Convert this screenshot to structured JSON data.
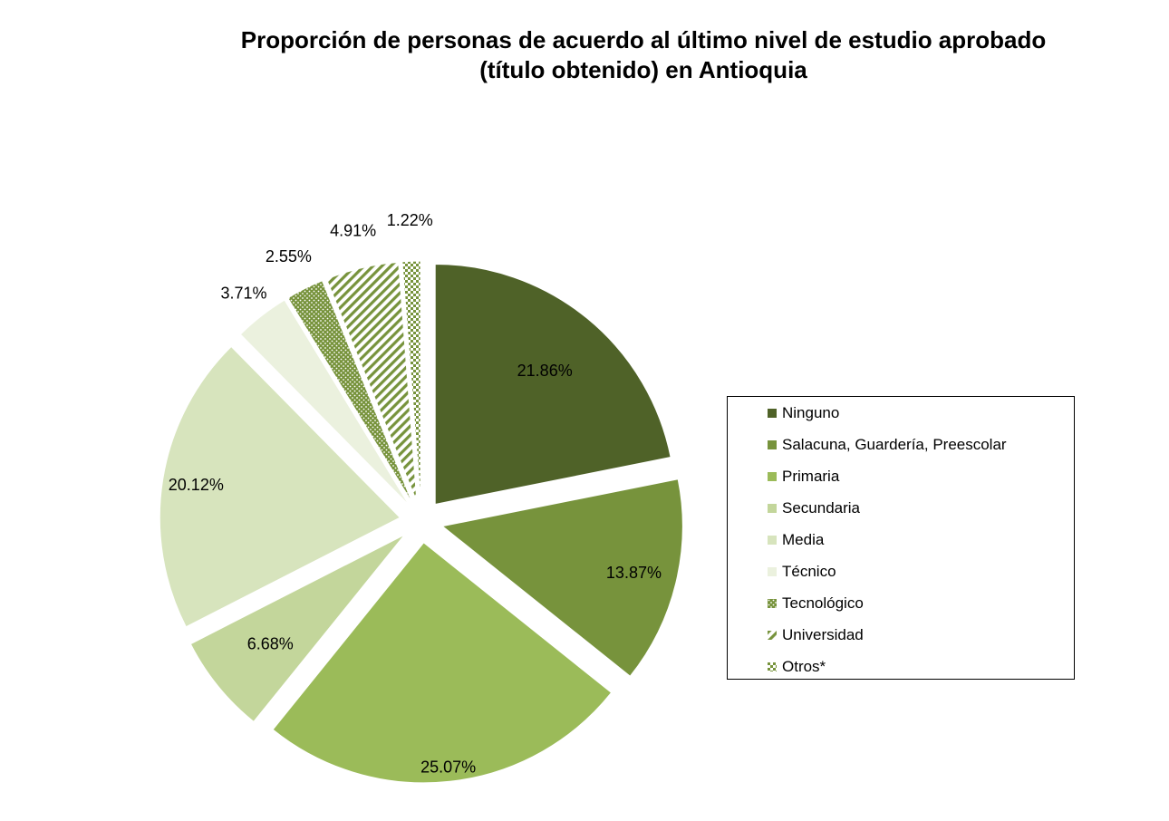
{
  "chart_data": {
    "type": "pie",
    "title_line1": "Proporción de personas de acuerdo al último nivel de estudio aprobado",
    "title_line2": "(título obtenido) en Antioquia",
    "slices": [
      {
        "label": "Ninguno",
        "value": 21.86,
        "display": "21.86%",
        "color": "#4f6228",
        "pattern": "solid"
      },
      {
        "label": "Salacuna, Guardería, Preescolar",
        "value": 13.87,
        "display": "13.87%",
        "color": "#77933c",
        "pattern": "solid"
      },
      {
        "label": "Primaria",
        "value": 25.07,
        "display": "25.07%",
        "color": "#9bbb59",
        "pattern": "solid"
      },
      {
        "label": "Secundaria",
        "value": 6.68,
        "display": "6.68%",
        "color": "#c3d69b",
        "pattern": "solid"
      },
      {
        "label": "Media",
        "value": 20.12,
        "display": "20.12%",
        "color": "#d7e4bd",
        "pattern": "solid"
      },
      {
        "label": "Técnico",
        "value": 3.71,
        "display": "3.71%",
        "color": "#ebf1de",
        "pattern": "solid"
      },
      {
        "label": "Tecnológico",
        "value": 2.55,
        "display": "2.55%",
        "color": "#77933c",
        "pattern": "dots"
      },
      {
        "label": "Universidad",
        "value": 4.91,
        "display": "4.91%",
        "color": "#77933c",
        "pattern": "diagonal"
      },
      {
        "label": "Otros*",
        "value": 1.22,
        "display": "1.22%",
        "color": "#77933c",
        "pattern": "checker"
      }
    ],
    "legend_position": "right"
  }
}
